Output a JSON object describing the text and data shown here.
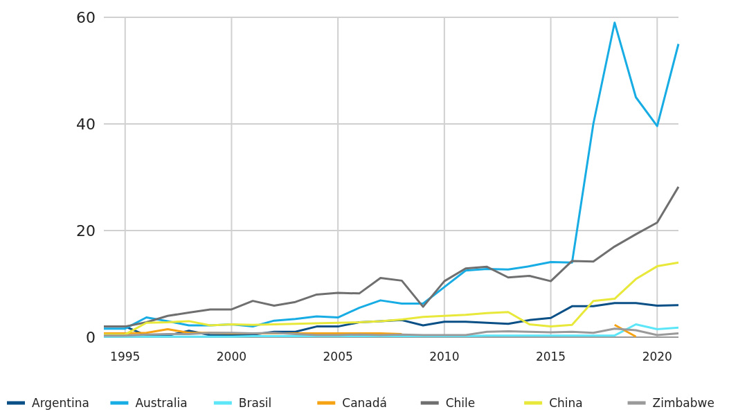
{
  "chart_data": {
    "type": "line",
    "x": [
      1994,
      1995,
      1996,
      1997,
      1998,
      1999,
      2000,
      2001,
      2002,
      2003,
      2004,
      2005,
      2006,
      2007,
      2008,
      2009,
      2010,
      2011,
      2012,
      2013,
      2014,
      2015,
      2016,
      2017,
      2018,
      2019,
      2020,
      2021
    ],
    "xlim": [
      1994,
      2021
    ],
    "xticks": [
      1995,
      2000,
      2005,
      2010,
      2015,
      2020
    ],
    "ylim": [
      0,
      60
    ],
    "yticks": [
      0,
      20,
      40,
      60
    ],
    "grid": true,
    "legend": "bottom",
    "line_style": "solid",
    "marker": "none",
    "series": [
      {
        "name": "Argentina",
        "color": "#0a4f85",
        "values": [
          2.0,
          2.0,
          0.3,
          0.3,
          1.2,
          0.4,
          0.4,
          0.5,
          1.0,
          1.0,
          2.0,
          2.0,
          2.8,
          3.0,
          3.2,
          2.2,
          2.9,
          2.9,
          2.7,
          2.5,
          3.2,
          3.6,
          5.8,
          5.8,
          6.4,
          6.4,
          5.9,
          6.0
        ]
      },
      {
        "name": "Australia",
        "color": "#17ace3",
        "values": [
          1.6,
          1.6,
          3.7,
          3.0,
          2.2,
          2.2,
          2.4,
          2.0,
          3.1,
          3.4,
          3.9,
          3.7,
          5.5,
          6.9,
          6.3,
          6.3,
          9.4,
          12.5,
          12.8,
          12.7,
          13.3,
          14.1,
          14.0,
          40,
          59,
          45,
          39.6,
          55
        ]
      },
      {
        "name": "Brasil",
        "color": "#5ce6f7",
        "values": [
          0.1,
          0.1,
          0.1,
          0.1,
          0.1,
          0.1,
          0.1,
          0.2,
          0.2,
          0.2,
          0.2,
          0.2,
          0.2,
          0.2,
          0.2,
          0.2,
          0.2,
          0.2,
          0.3,
          0.3,
          0.3,
          0.3,
          0.3,
          0.3,
          0.3,
          2.4,
          1.5,
          1.8
        ]
      },
      {
        "name": "Canadá",
        "color": "#f6a313",
        "values": [
          0.7,
          0.7,
          0.8,
          1.5,
          0.8,
          0.8,
          0.7,
          0.7,
          0.7,
          0.7,
          0.7,
          0.7,
          0.7,
          0.7,
          0.6,
          null,
          null,
          null,
          null,
          null,
          null,
          null,
          null,
          null,
          2.3,
          0.1,
          null,
          null
        ]
      },
      {
        "name": "Chile",
        "color": "#6f6f6f",
        "values": [
          2.0,
          2.0,
          2.8,
          4.0,
          4.6,
          5.2,
          5.2,
          6.8,
          5.9,
          6.6,
          8.0,
          8.3,
          8.2,
          11.1,
          10.6,
          5.7,
          10.5,
          12.9,
          13.2,
          11.2,
          11.5,
          10.5,
          14.3,
          14.2,
          17,
          19.3,
          21.5,
          28.2
        ]
      },
      {
        "name": "China",
        "color": "#e8e83a",
        "values": [
          0.5,
          0.5,
          2.7,
          2.8,
          3.0,
          2.2,
          2.4,
          2.3,
          2.4,
          2.5,
          2.6,
          2.7,
          2.8,
          3.0,
          3.3,
          3.8,
          4.0,
          4.2,
          4.5,
          4.7,
          2.4,
          2.0,
          2.3,
          6.8,
          7.2,
          10.9,
          13.3,
          14.0
        ]
      },
      {
        "name": "Zimbabwe",
        "color": "#9a9a9a",
        "values": [
          0.3,
          0.3,
          0.5,
          0.6,
          0.6,
          0.8,
          0.8,
          0.7,
          0.8,
          0.6,
          0.4,
          0.4,
          0.5,
          0.4,
          0.5,
          0.4,
          0.4,
          0.4,
          1.0,
          1.1,
          1.0,
          0.9,
          1.0,
          0.8,
          1.6,
          1.3,
          0.4,
          0.7
        ]
      }
    ]
  }
}
